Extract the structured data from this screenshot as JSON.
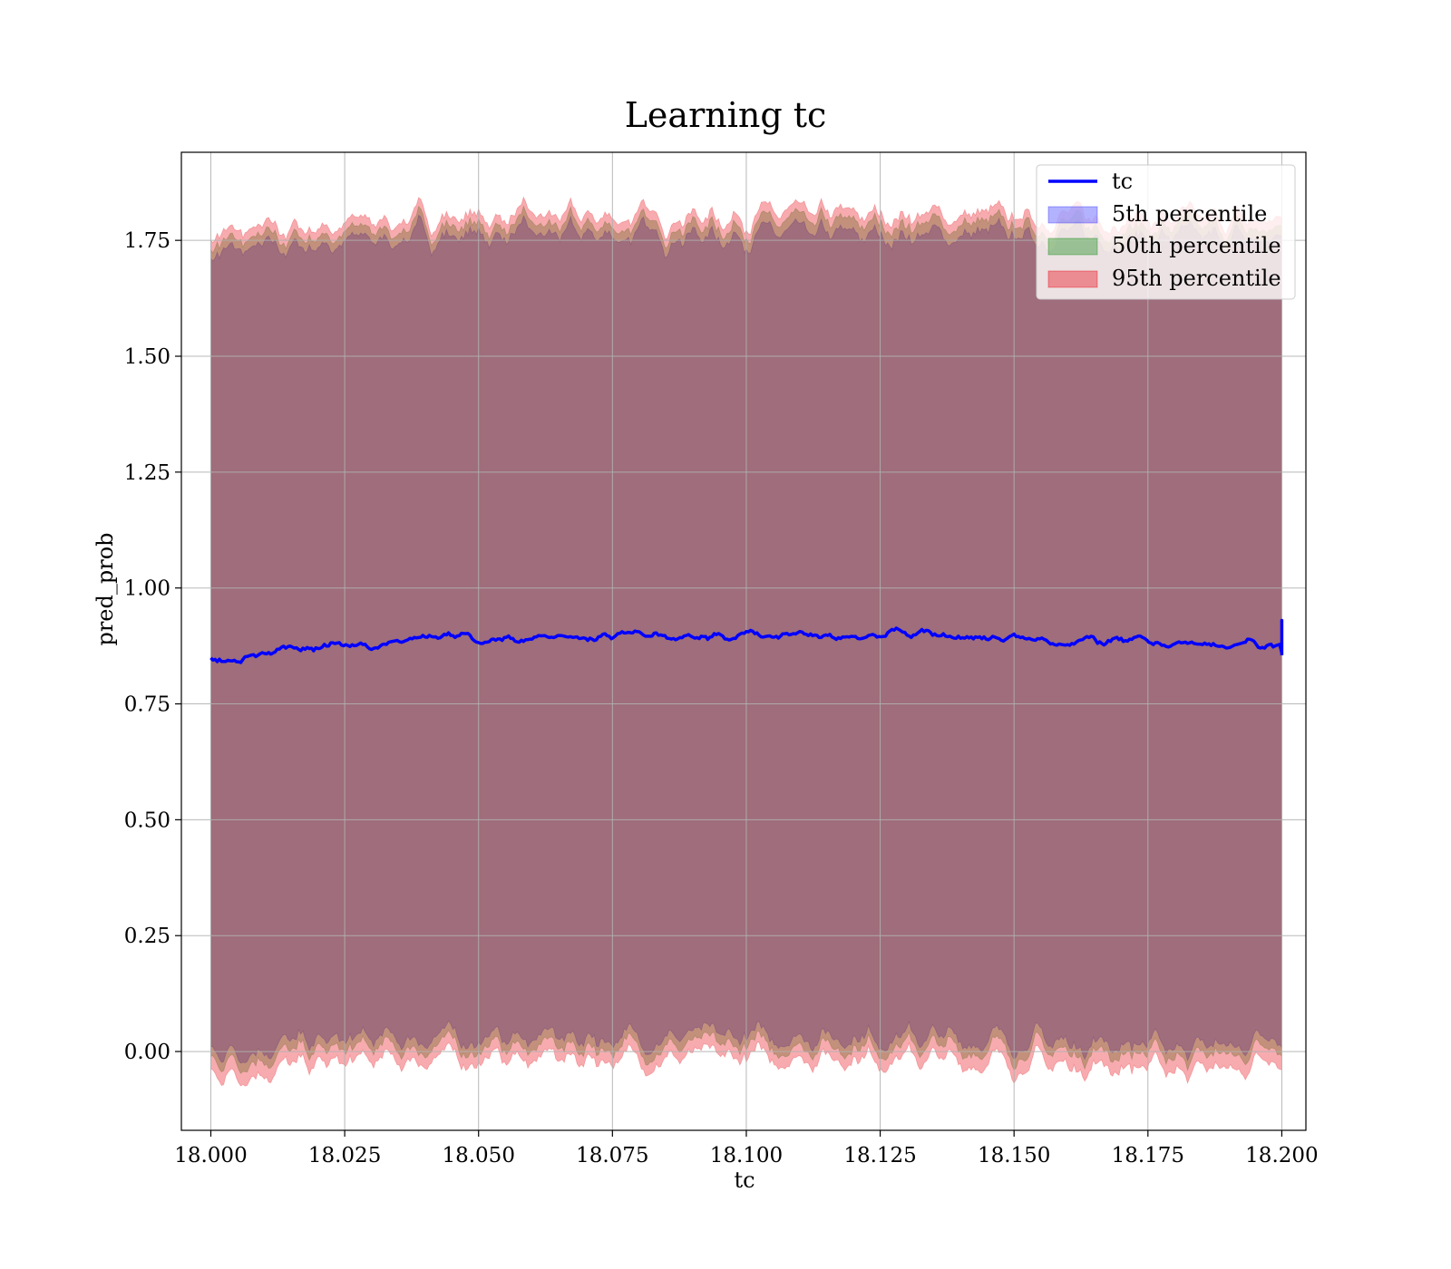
{
  "chart_data": {
    "type": "line",
    "title": "Learning tc",
    "xlabel": "tc",
    "ylabel": "pred_prob",
    "xlim": [
      17.9945,
      18.2045
    ],
    "ylim": [
      -0.17,
      1.94
    ],
    "xticks": [
      18.0,
      18.025,
      18.05,
      18.075,
      18.1,
      18.125,
      18.15,
      18.175,
      18.2
    ],
    "xtick_labels": [
      "18.000",
      "18.025",
      "18.050",
      "18.075",
      "18.100",
      "18.125",
      "18.150",
      "18.175",
      "18.200"
    ],
    "yticks": [
      0.0,
      0.25,
      0.5,
      0.75,
      1.0,
      1.25,
      1.5,
      1.75
    ],
    "ytick_labels": [
      "0.00",
      "0.25",
      "0.50",
      "0.75",
      "1.00",
      "1.25",
      "1.50",
      "1.75"
    ],
    "grid": true,
    "legend_position": "top-right",
    "x_range": [
      18.0,
      18.2
    ],
    "line": {
      "name": "tc",
      "color": "#0000ff",
      "keypoints": [
        [
          18.0,
          0.85
        ],
        [
          18.005,
          0.845
        ],
        [
          18.01,
          0.86
        ],
        [
          18.015,
          0.87
        ],
        [
          18.02,
          0.875
        ],
        [
          18.025,
          0.88
        ],
        [
          18.03,
          0.88
        ],
        [
          18.035,
          0.89
        ],
        [
          18.04,
          0.9
        ],
        [
          18.05,
          0.89
        ],
        [
          18.06,
          0.89
        ],
        [
          18.07,
          0.89
        ],
        [
          18.08,
          0.9
        ],
        [
          18.09,
          0.89
        ],
        [
          18.1,
          0.9
        ],
        [
          18.11,
          0.895
        ],
        [
          18.12,
          0.895
        ],
        [
          18.13,
          0.905
        ],
        [
          18.14,
          0.895
        ],
        [
          18.15,
          0.89
        ],
        [
          18.16,
          0.885
        ],
        [
          18.17,
          0.885
        ],
        [
          18.18,
          0.88
        ],
        [
          18.19,
          0.875
        ],
        [
          18.2,
          0.88
        ]
      ]
    },
    "bands": [
      {
        "name": "5th percentile",
        "color": "#0000ff",
        "lower": [
          [
            18.0,
            0.0
          ],
          [
            18.02,
            0.02
          ],
          [
            18.04,
            0.03
          ],
          [
            18.08,
            0.03
          ],
          [
            18.12,
            0.035
          ],
          [
            18.16,
            0.02
          ],
          [
            18.2,
            0.01
          ]
        ],
        "upper": [
          [
            18.0,
            1.72
          ],
          [
            18.02,
            1.74
          ],
          [
            18.04,
            1.76
          ],
          [
            18.08,
            1.76
          ],
          [
            18.12,
            1.76
          ],
          [
            18.16,
            1.76
          ],
          [
            18.2,
            1.75
          ]
        ]
      },
      {
        "name": "50th percentile",
        "color": "#008000",
        "lower": [
          [
            18.0,
            -0.02
          ],
          [
            18.02,
            0.0
          ],
          [
            18.04,
            0.01
          ],
          [
            18.08,
            0.01
          ],
          [
            18.12,
            0.015
          ],
          [
            18.16,
            0.0
          ],
          [
            18.2,
            -0.01
          ]
        ],
        "upper": [
          [
            18.0,
            1.74
          ],
          [
            18.02,
            1.76
          ],
          [
            18.04,
            1.78
          ],
          [
            18.08,
            1.78
          ],
          [
            18.12,
            1.785
          ],
          [
            18.16,
            1.78
          ],
          [
            18.2,
            1.77
          ]
        ]
      },
      {
        "name": "95th percentile",
        "color": "#e8000b",
        "lower": [
          [
            18.0,
            -0.05
          ],
          [
            18.02,
            -0.03
          ],
          [
            18.04,
            -0.015
          ],
          [
            18.08,
            -0.015
          ],
          [
            18.12,
            -0.01
          ],
          [
            18.16,
            -0.03
          ],
          [
            18.2,
            -0.04
          ]
        ],
        "upper": [
          [
            18.0,
            1.76
          ],
          [
            18.02,
            1.78
          ],
          [
            18.04,
            1.8
          ],
          [
            18.08,
            1.8
          ],
          [
            18.12,
            1.805
          ],
          [
            18.16,
            1.8
          ],
          [
            18.2,
            1.79
          ]
        ]
      }
    ],
    "legend": [
      "tc",
      "5th percentile",
      "50th percentile",
      "95th percentile"
    ]
  }
}
